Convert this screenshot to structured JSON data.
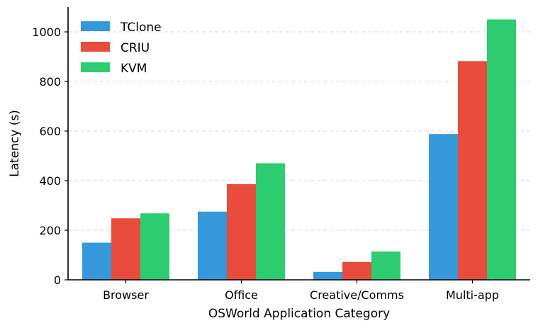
{
  "chart_data": {
    "type": "bar",
    "title": "",
    "xlabel": "OSWorld Application Category",
    "ylabel": "Latency (s)",
    "categories": [
      "Browser",
      "Office",
      "Creative/Comms",
      "Multi-app"
    ],
    "series": [
      {
        "name": "TClone",
        "color": "#3498db",
        "values": [
          150,
          275,
          32,
          588
        ]
      },
      {
        "name": "CRIU",
        "color": "#e74c3c",
        "values": [
          248,
          386,
          72,
          882
        ]
      },
      {
        "name": "KVM",
        "color": "#2ecc71",
        "values": [
          268,
          470,
          114,
          1050
        ]
      }
    ],
    "ylim": [
      0,
      1100
    ],
    "yticks": [
      0,
      200,
      400,
      600,
      800,
      1000
    ],
    "grid": "horizontal dashed",
    "legend_position": "top-left"
  }
}
